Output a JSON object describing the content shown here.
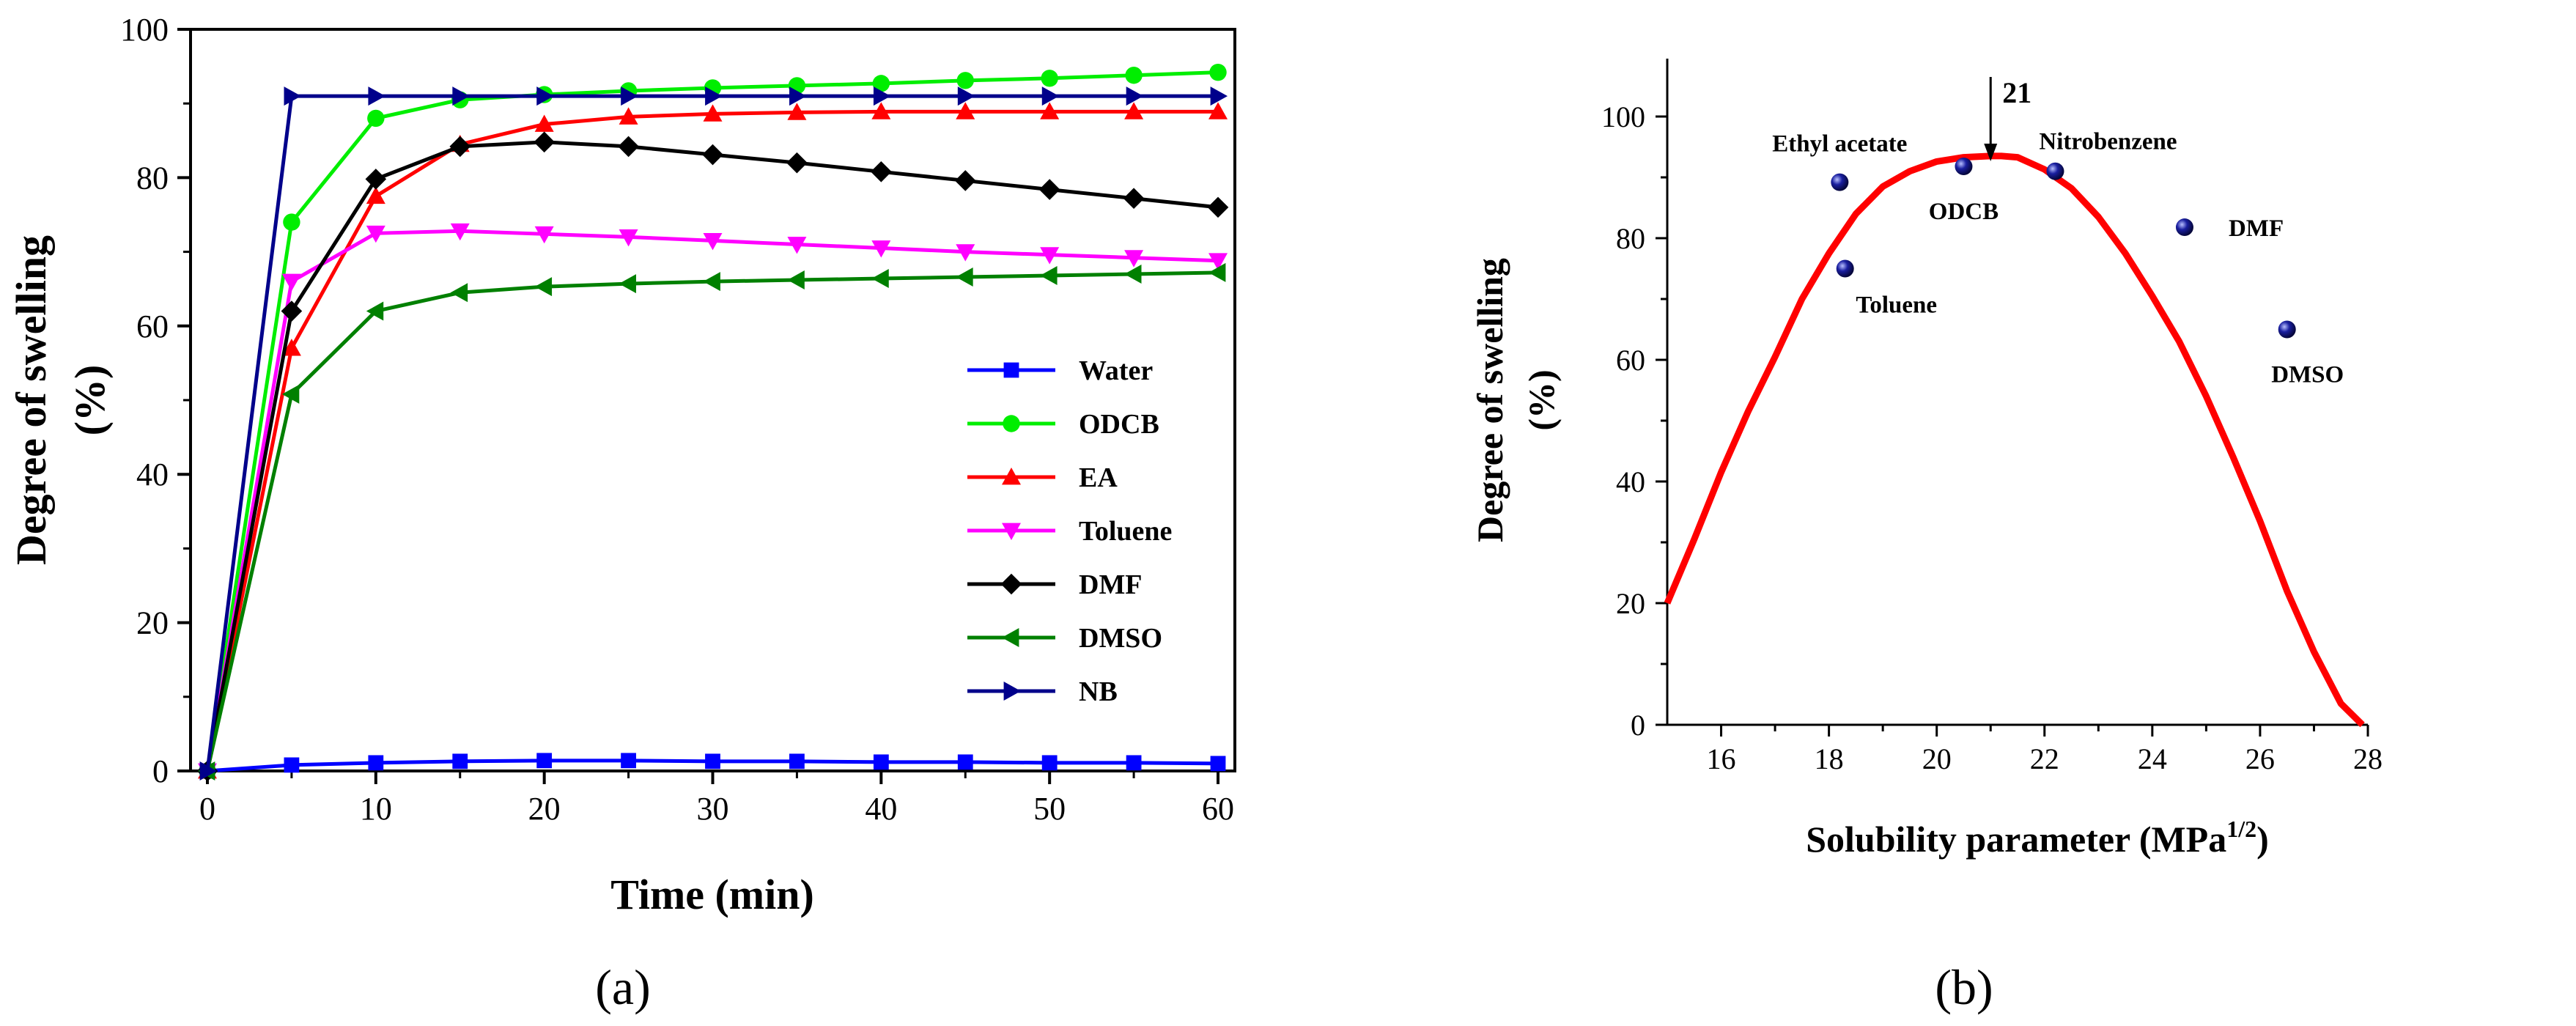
{
  "chart_data": [
    {
      "type": "line",
      "panel_label": "(a)",
      "xlabel": "Time (min)",
      "ylabel_line1": "Degree of swelling",
      "ylabel_line2": "(%)",
      "xlim": [
        -1,
        61
      ],
      "ylim": [
        0,
        100
      ],
      "xticks": [
        0,
        10,
        20,
        30,
        40,
        50,
        60
      ],
      "yticks": [
        0,
        20,
        40,
        60,
        80,
        100
      ],
      "x": [
        0,
        5,
        10,
        15,
        20,
        25,
        30,
        35,
        40,
        45,
        50,
        55,
        60
      ],
      "series": [
        {
          "name": "Water",
          "color": "#0000ff",
          "marker": "square",
          "values": [
            0,
            0.8,
            1.1,
            1.3,
            1.4,
            1.4,
            1.3,
            1.3,
            1.2,
            1.2,
            1.1,
            1.1,
            1.0
          ]
        },
        {
          "name": "ODCB",
          "color": "#00ee00",
          "marker": "circle",
          "values": [
            0,
            74,
            88,
            90.5,
            91.2,
            91.7,
            92.1,
            92.4,
            92.7,
            93.1,
            93.4,
            93.8,
            94.2
          ]
        },
        {
          "name": "EA",
          "color": "#ff0000",
          "marker": "triangle-up",
          "values": [
            0,
            57,
            77.5,
            84.5,
            87.2,
            88.2,
            88.6,
            88.8,
            88.9,
            88.9,
            88.9,
            88.9,
            88.9
          ]
        },
        {
          "name": "Toluene",
          "color": "#ff00ff",
          "marker": "triangle-down",
          "values": [
            0,
            66,
            72.5,
            72.8,
            72.4,
            72,
            71.5,
            71,
            70.5,
            70,
            69.6,
            69.2,
            68.8
          ]
        },
        {
          "name": "DMF",
          "color": "#000000",
          "marker": "diamond",
          "values": [
            0,
            62,
            79.8,
            84.2,
            84.8,
            84.2,
            83.1,
            82,
            80.8,
            79.6,
            78.4,
            77.2,
            76
          ]
        },
        {
          "name": "DMSO",
          "color": "#008000",
          "marker": "triangle-left",
          "values": [
            0,
            50.8,
            62,
            64.5,
            65.3,
            65.7,
            66,
            66.2,
            66.4,
            66.6,
            66.8,
            67,
            67.2
          ]
        },
        {
          "name": "NB",
          "color": "#00008b",
          "marker": "triangle-right",
          "values": [
            0,
            91,
            91,
            91,
            91,
            91,
            91,
            91,
            91,
            91,
            91,
            91,
            91
          ]
        }
      ]
    },
    {
      "type": "scatter",
      "panel_label": "(b)",
      "xlabel": "Solubility parameter (MPa",
      "xlabel_sup": "1/2",
      "xlabel_end": ")",
      "ylabel_line1": "Degree of swelling",
      "ylabel_line2": "(%)",
      "xlim": [
        15,
        28
      ],
      "ylim": [
        0,
        110
      ],
      "xticks": [
        16,
        18,
        20,
        22,
        24,
        26,
        28
      ],
      "yticks": [
        0,
        20,
        40,
        60,
        80,
        100
      ],
      "points": [
        {
          "label": "Ethyl acetate",
          "x": 18.2,
          "y": 89.2
        },
        {
          "label": "Toluene",
          "x": 18.3,
          "y": 75
        },
        {
          "label": "ODCB",
          "x": 20.5,
          "y": 91.8
        },
        {
          "label": "Nitrobenzene",
          "x": 22.2,
          "y": 91
        },
        {
          "label": "DMF",
          "x": 24.6,
          "y": 81.8
        },
        {
          "label": "DMSO",
          "x": 26.5,
          "y": 65
        }
      ],
      "fit_curve": {
        "color": "#ff0000",
        "x": [
          15,
          15.5,
          16,
          16.5,
          17,
          17.5,
          18,
          18.5,
          19,
          19.5,
          20,
          20.5,
          21,
          21.2,
          21.5,
          22,
          22.5,
          23,
          23.5,
          24,
          24.5,
          25,
          25.5,
          26,
          26.5,
          27,
          27.5,
          27.9
        ],
        "y": [
          20,
          30.5,
          41.5,
          51.5,
          60.5,
          70,
          77.5,
          84,
          88.5,
          91,
          92.6,
          93.3,
          93.5,
          93.5,
          93.3,
          91.3,
          88.2,
          83.5,
          77.5,
          70.5,
          63,
          54,
          44,
          33.5,
          22,
          12,
          3.5,
          0
        ]
      },
      "annotation": {
        "text": "21",
        "x": 21
      }
    }
  ]
}
